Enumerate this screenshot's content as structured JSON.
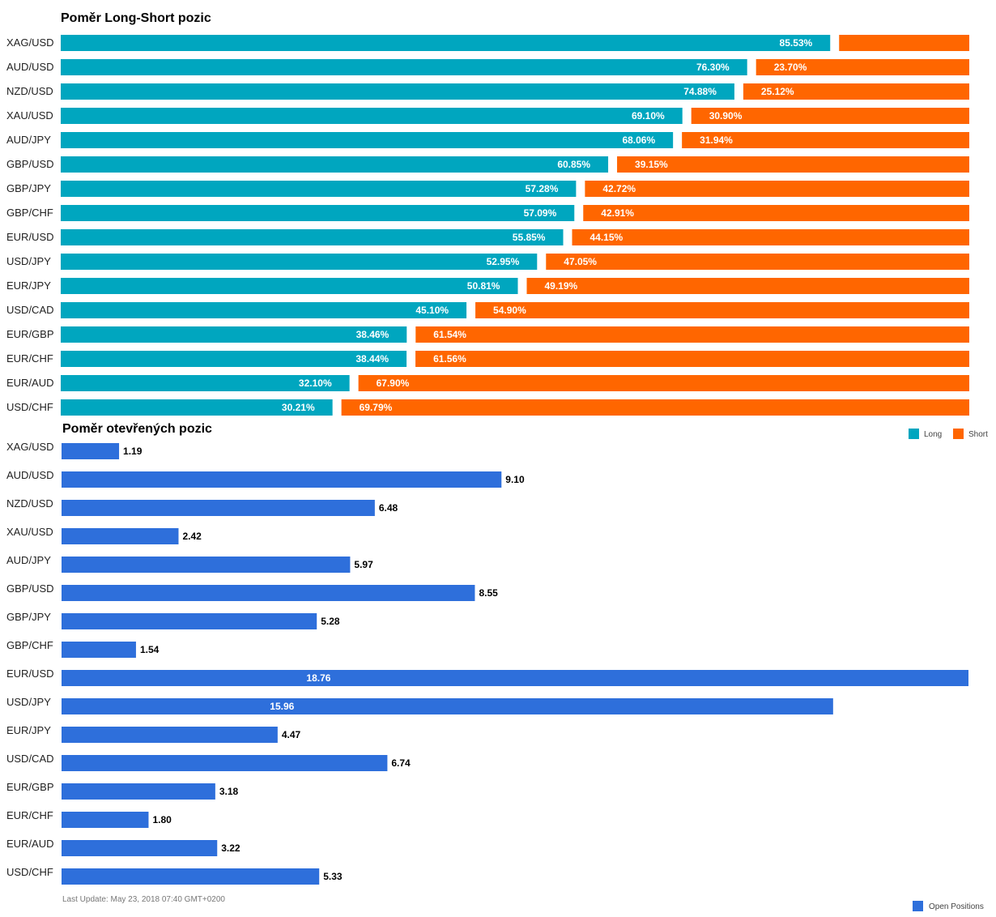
{
  "colors": {
    "long": "#00a6bf",
    "short": "#ff6600",
    "open": "#2e6fdb"
  },
  "footer": {
    "last_update": "Last Update: May 23, 2018 07:40 GMT+0200"
  },
  "chart_data": [
    {
      "type": "bar",
      "orientation": "horizontal",
      "stacked": true,
      "title": "Poměr Long-Short pozic",
      "legend_position": "bottom-right",
      "xlim": [
        0,
        100
      ],
      "categories": [
        "XAG/USD",
        "AUD/USD",
        "NZD/USD",
        "XAU/USD",
        "AUD/JPY",
        "GBP/USD",
        "GBP/JPY",
        "GBP/CHF",
        "EUR/USD",
        "USD/JPY",
        "EUR/JPY",
        "USD/CAD",
        "EUR/GBP",
        "EUR/CHF",
        "EUR/AUD",
        "USD/CHF"
      ],
      "series": [
        {
          "name": "Long",
          "values": [
            85.53,
            76.3,
            74.88,
            69.1,
            68.06,
            60.85,
            57.28,
            57.09,
            55.85,
            52.95,
            50.81,
            45.1,
            38.46,
            38.44,
            32.1,
            30.21
          ],
          "labels": [
            "85.53%",
            "76.30%",
            "74.88%",
            "69.10%",
            "68.06%",
            "60.85%",
            "57.28%",
            "57.09%",
            "55.85%",
            "52.95%",
            "50.81%",
            "45.10%",
            "38.46%",
            "38.44%",
            "32.10%",
            "30.21%"
          ]
        },
        {
          "name": "Short",
          "values": [
            14.47,
            23.7,
            25.12,
            30.9,
            31.94,
            39.15,
            42.72,
            42.91,
            44.15,
            47.05,
            49.19,
            54.9,
            61.54,
            61.56,
            67.9,
            69.79
          ],
          "labels": [
            "",
            "23.70%",
            "25.12%",
            "30.90%",
            "31.94%",
            "39.15%",
            "42.72%",
            "42.91%",
            "44.15%",
            "47.05%",
            "49.19%",
            "54.90%",
            "61.54%",
            "61.56%",
            "67.90%",
            "69.79%"
          ]
        }
      ]
    },
    {
      "type": "bar",
      "orientation": "horizontal",
      "title": "Poměr otevřených pozic",
      "legend_position": "bottom-right",
      "xlim": [
        0,
        18.76
      ],
      "categories": [
        "XAG/USD",
        "AUD/USD",
        "NZD/USD",
        "XAU/USD",
        "AUD/JPY",
        "GBP/USD",
        "GBP/JPY",
        "GBP/CHF",
        "EUR/USD",
        "USD/JPY",
        "EUR/JPY",
        "USD/CAD",
        "EUR/GBP",
        "EUR/CHF",
        "EUR/AUD",
        "USD/CHF"
      ],
      "series": [
        {
          "name": "Open Positions",
          "values": [
            1.19,
            9.1,
            6.48,
            2.42,
            5.97,
            8.55,
            5.28,
            1.54,
            18.76,
            15.96,
            4.47,
            6.74,
            3.18,
            1.8,
            3.22,
            5.33
          ],
          "labels": [
            "1.19",
            "9.10",
            "6.48",
            "2.42",
            "5.97",
            "8.55",
            "5.28",
            "1.54",
            "18.76",
            "15.96",
            "4.47",
            "6.74",
            "3.18",
            "1.80",
            "3.22",
            "5.33"
          ]
        }
      ]
    }
  ]
}
